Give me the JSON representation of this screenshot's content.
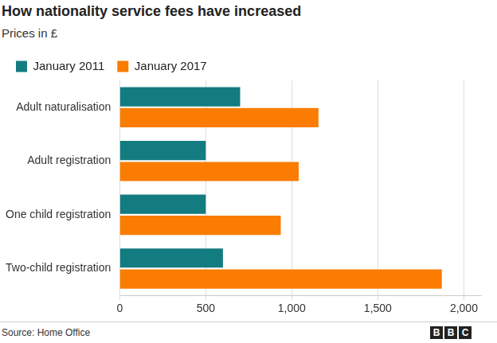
{
  "chart_data": {
    "type": "bar",
    "orientation": "horizontal",
    "title": "How nationality service fees have increased",
    "subtitle": "Prices in £",
    "categories": [
      "Adult naturalisation",
      "Adult registration",
      "One child registration",
      "Two-child registration"
    ],
    "series": [
      {
        "name": "January 2011",
        "color": "#137c80",
        "values": [
          700,
          500,
          500,
          600
        ]
      },
      {
        "name": "January 2017",
        "color": "#fa7c00",
        "values": [
          1155,
          1040,
          936,
          1872
        ]
      }
    ],
    "xlim": [
      0,
      2100
    ],
    "xticks": [
      0,
      500,
      {
        "value": 1000,
        "label": "1,000"
      },
      {
        "value": 1500,
        "label": "1,500"
      },
      {
        "value": 2000,
        "label": "2,000"
      }
    ],
    "grid": true,
    "legend": "top-left",
    "source": "Source: Home Office",
    "logo": "BBC"
  }
}
